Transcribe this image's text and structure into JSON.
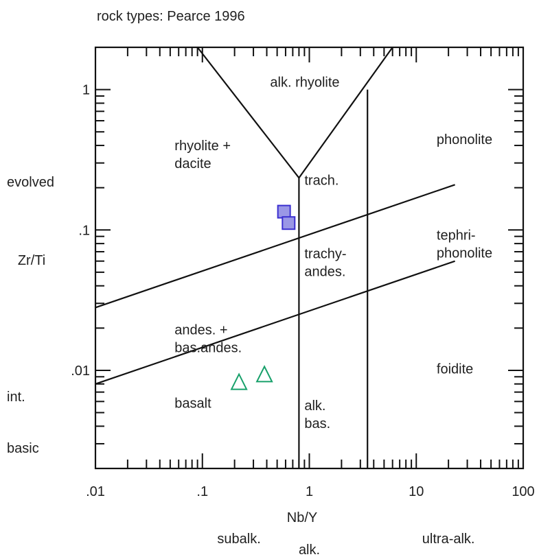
{
  "chart_data": {
    "type": "scatter",
    "title": "rock types: Pearce 1996",
    "xlabel": "Nb/Y",
    "ylabel": "Zr/Ti",
    "x_scale": "log",
    "y_scale": "log",
    "xlim": [
      0.01,
      100
    ],
    "ylim": [
      0.002,
      2
    ],
    "x_tick_labels": [
      {
        "value": 0.01,
        "label": ".01"
      },
      {
        "value": 0.1,
        "label": ".1"
      },
      {
        "value": 1,
        "label": "1"
      },
      {
        "value": 10,
        "label": "10"
      },
      {
        "value": 100,
        "label": "100"
      }
    ],
    "y_tick_labels": [
      {
        "value": 1,
        "label": "1"
      },
      {
        "value": 0.1,
        "label": ".1"
      },
      {
        "value": 0.01,
        "label": ".01"
      }
    ],
    "y_side_labels": [
      {
        "value": 0.22,
        "label": "evolved"
      },
      {
        "value": 0.0065,
        "label": "int."
      },
      {
        "value": 0.0028,
        "label": "basic"
      }
    ],
    "x_bottom_labels": [
      {
        "value": 0.22,
        "label": "subalk."
      },
      {
        "value": 1.0,
        "label": "alk."
      },
      {
        "value": 20,
        "label": "ultra-alk."
      }
    ],
    "boundaries": [
      {
        "points": [
          [
            0.09,
            2
          ],
          [
            0.8,
            0.235
          ]
        ]
      },
      {
        "points": [
          [
            0.8,
            0.235
          ],
          [
            6,
            2
          ]
        ]
      },
      {
        "points": [
          [
            0.8,
            0.235
          ],
          [
            0.8,
            0.002
          ]
        ]
      },
      {
        "points": [
          [
            3.5,
            1.0
          ],
          [
            3.5,
            0.002
          ]
        ]
      },
      {
        "points": [
          [
            0.01,
            0.028
          ],
          [
            23,
            0.21
          ]
        ]
      },
      {
        "points": [
          [
            0.01,
            0.008
          ],
          [
            23,
            0.06
          ]
        ]
      }
    ],
    "field_labels": [
      {
        "lines": [
          "alk. rhyolite"
        ],
        "x": 0.43,
        "y": 1.05
      },
      {
        "lines": [
          "rhyolite +",
          "dacite"
        ],
        "x": 0.055,
        "y": 0.37
      },
      {
        "lines": [
          "phonolite"
        ],
        "x": 15.5,
        "y": 0.41
      },
      {
        "lines": [
          "trach."
        ],
        "x": 0.9,
        "y": 0.21
      },
      {
        "lines": [
          "tephri-",
          "phonolite"
        ],
        "x": 15.5,
        "y": 0.085
      },
      {
        "lines": [
          "trachy-",
          "andes."
        ],
        "x": 0.9,
        "y": 0.063
      },
      {
        "lines": [
          "andes. +",
          "bas.andes."
        ],
        "x": 0.055,
        "y": 0.018
      },
      {
        "lines": [
          "foidite"
        ],
        "x": 15.5,
        "y": 0.0095
      },
      {
        "lines": [
          "basalt"
        ],
        "x": 0.055,
        "y": 0.0054
      },
      {
        "lines": [
          "alk.",
          "bas."
        ],
        "x": 0.9,
        "y": 0.0052
      }
    ],
    "series": [
      {
        "marker": "square",
        "color": "#3b2fd0",
        "fill": "#9a97e6",
        "points": [
          {
            "x": 0.58,
            "y": 0.135
          },
          {
            "x": 0.64,
            "y": 0.112
          }
        ]
      },
      {
        "marker": "triangle",
        "color": "#17a06a",
        "fill": "none",
        "points": [
          {
            "x": 0.22,
            "y": 0.0082
          },
          {
            "x": 0.38,
            "y": 0.0093
          }
        ]
      }
    ]
  }
}
